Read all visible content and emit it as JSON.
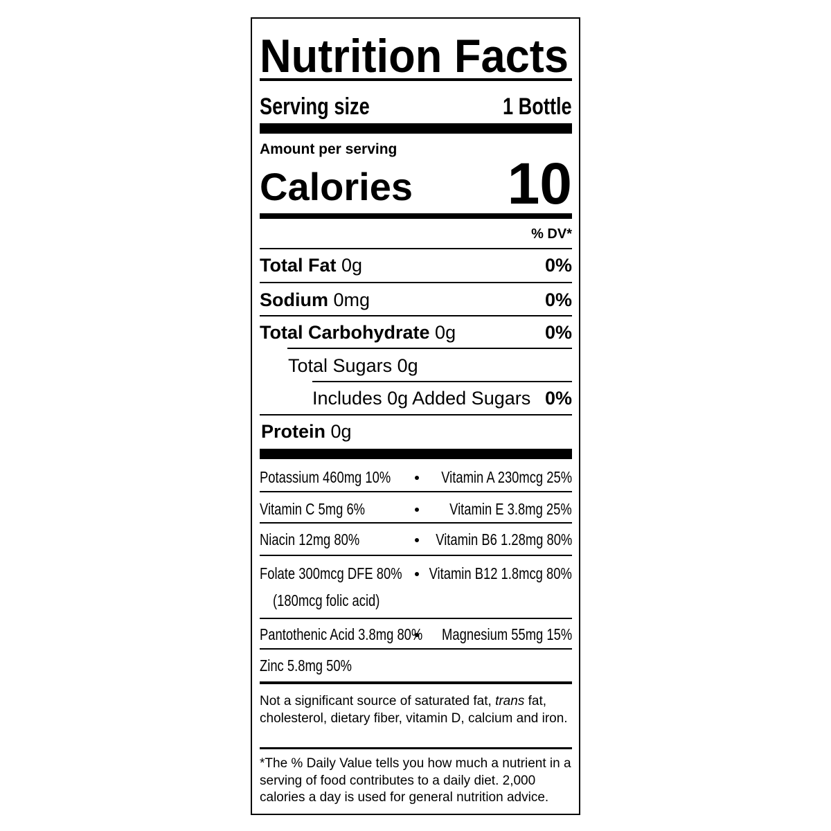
{
  "title": "Nutrition Facts",
  "serving_size": {
    "label": "Serving size",
    "value": "1 Bottle"
  },
  "amount_per_serving": "Amount per serving",
  "calories": {
    "label": "Calories",
    "value": "10"
  },
  "dv_header": "% DV*",
  "nutrients": [
    {
      "name": "Total Fat",
      "amount": "0g",
      "dv": "0%"
    },
    {
      "name": "Sodium",
      "amount": "0mg",
      "dv": "0%"
    },
    {
      "name": "Total Carbohydrate",
      "amount": "0g",
      "dv": "0%"
    },
    {
      "text": "Total Sugars 0g"
    },
    {
      "text": "Includes 0g Added Sugars",
      "dv": "0%"
    },
    {
      "name": "Protein",
      "amount": "0g"
    }
  ],
  "vitamins": [
    {
      "left": "Potassium 460mg 10%",
      "right": "Vitamin A 230mcg 25%"
    },
    {
      "left": "Vitamin C 5mg 6%",
      "right": "Vitamin E 3.8mg 25%"
    },
    {
      "left": "Niacin 12mg 80%",
      "right": "Vitamin B6 1.28mg 80%"
    },
    {
      "left": "Folate 300mcg DFE 80%",
      "left_note": "(180mcg folic acid)",
      "right": "Vitamin B12 1.8mcg 80%"
    },
    {
      "left": "Pantothenic Acid 3.8mg 80%",
      "right": "Magnesium 55mg 15%"
    },
    {
      "left": "Zinc 5.8mg 50%"
    }
  ],
  "footnote_nutrients": {
    "before": "Not a significant source of saturated fat, ",
    "italic": "trans",
    "after": " fat, cholesterol, dietary fiber, vitamin D, calcium and iron."
  },
  "footnote_dv": "*The % Daily Value tells you how much a nutrient in a serving of food contributes to a daily diet. 2,000 calories a day is used for general nutrition advice."
}
